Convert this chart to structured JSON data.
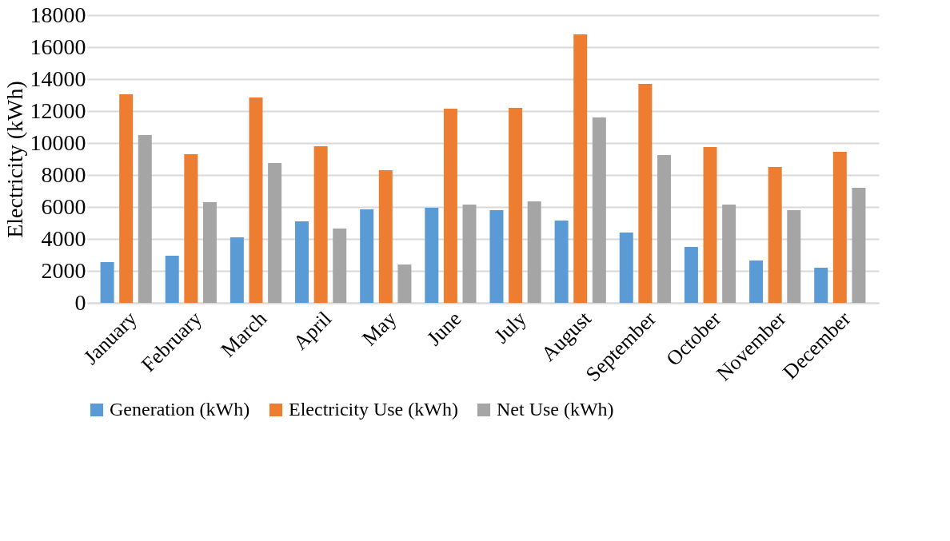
{
  "chart_data": {
    "type": "bar",
    "ylabel": "Electricity (kWh)",
    "categories": [
      "January",
      "February",
      "March",
      "April",
      "May",
      "June",
      "July",
      "August",
      "September",
      "October",
      "November",
      "December"
    ],
    "series": [
      {
        "name": "Generation (kWh)",
        "color": "#5b9bd5",
        "values": [
          2550,
          2950,
          4100,
          5100,
          5850,
          5950,
          5800,
          5150,
          4400,
          3500,
          2650,
          2200
        ]
      },
      {
        "name": "Electricity Use (kWh)",
        "color": "#ed7d31",
        "values": [
          13050,
          9300,
          12850,
          9800,
          8300,
          12150,
          12200,
          16800,
          13700,
          9750,
          8500,
          9450
        ]
      },
      {
        "name": "Net Use (kWh)",
        "color": "#a5a5a5",
        "values": [
          10500,
          6300,
          8750,
          4650,
          2400,
          6150,
          6350,
          11600,
          9250,
          6150,
          5800,
          7200
        ]
      }
    ],
    "ylim": [
      0,
      18000
    ],
    "yticks": [
      0,
      2000,
      4000,
      6000,
      8000,
      10000,
      12000,
      14000,
      16000,
      18000
    ],
    "grid": "y",
    "legend": "bottom"
  }
}
